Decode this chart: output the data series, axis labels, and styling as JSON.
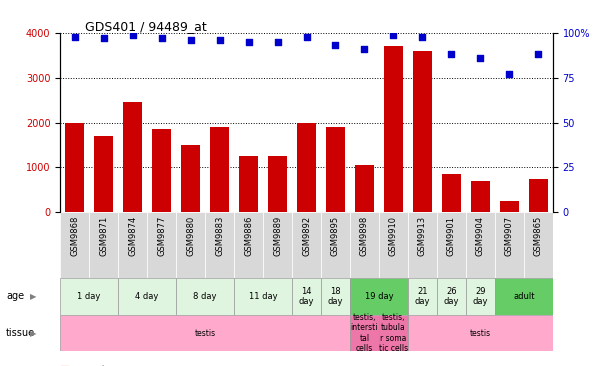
{
  "title": "GDS401 / 94489_at",
  "samples": [
    "GSM9868",
    "GSM9871",
    "GSM9874",
    "GSM9877",
    "GSM9880",
    "GSM9883",
    "GSM9886",
    "GSM9889",
    "GSM9892",
    "GSM9895",
    "GSM9898",
    "GSM9910",
    "GSM9913",
    "GSM9901",
    "GSM9904",
    "GSM9907",
    "GSM9865"
  ],
  "counts": [
    2000,
    1700,
    2450,
    1850,
    1500,
    1900,
    1250,
    1250,
    2000,
    1900,
    1050,
    3700,
    3600,
    850,
    700,
    250,
    750
  ],
  "percentiles": [
    98,
    97,
    99,
    97,
    96,
    96,
    95,
    95,
    98,
    93,
    91,
    99,
    98,
    88,
    86,
    77,
    88
  ],
  "bar_color": "#cc0000",
  "dot_color": "#0000cc",
  "ylim_left": [
    0,
    4000
  ],
  "ylim_right": [
    0,
    100
  ],
  "yticks_left": [
    0,
    1000,
    2000,
    3000,
    4000
  ],
  "yticks_right": [
    0,
    25,
    50,
    75,
    100
  ],
  "age_groups": [
    {
      "label": "1 day",
      "start": 0,
      "end": 2,
      "color": "#e0f5e0"
    },
    {
      "label": "4 day",
      "start": 2,
      "end": 4,
      "color": "#e0f5e0"
    },
    {
      "label": "8 day",
      "start": 4,
      "end": 6,
      "color": "#e0f5e0"
    },
    {
      "label": "11 day",
      "start": 6,
      "end": 8,
      "color": "#e0f5e0"
    },
    {
      "label": "14\nday",
      "start": 8,
      "end": 9,
      "color": "#e0f5e0"
    },
    {
      "label": "18\nday",
      "start": 9,
      "end": 10,
      "color": "#e0f5e0"
    },
    {
      "label": "19 day",
      "start": 10,
      "end": 12,
      "color": "#66cc66"
    },
    {
      "label": "21\nday",
      "start": 12,
      "end": 13,
      "color": "#e0f5e0"
    },
    {
      "label": "26\nday",
      "start": 13,
      "end": 14,
      "color": "#e0f5e0"
    },
    {
      "label": "29\nday",
      "start": 14,
      "end": 15,
      "color": "#e0f5e0"
    },
    {
      "label": "adult",
      "start": 15,
      "end": 17,
      "color": "#66cc66"
    }
  ],
  "tissue_groups": [
    {
      "label": "testis",
      "start": 0,
      "end": 10,
      "color": "#ffaacc"
    },
    {
      "label": "testis,\nintersti\ntal\ncells",
      "start": 10,
      "end": 11,
      "color": "#ee77aa"
    },
    {
      "label": "testis,\ntubula\nr soma\ntic cells",
      "start": 11,
      "end": 12,
      "color": "#ee77aa"
    },
    {
      "label": "testis",
      "start": 12,
      "end": 17,
      "color": "#ffaacc"
    }
  ],
  "sample_bg_color": "#d8d8d8",
  "xlabel_rotation": 90,
  "grid_style": "dotted",
  "background_color": "#ffffff",
  "label_fontsize": 7,
  "tick_fontsize": 7,
  "sample_fontsize": 6
}
